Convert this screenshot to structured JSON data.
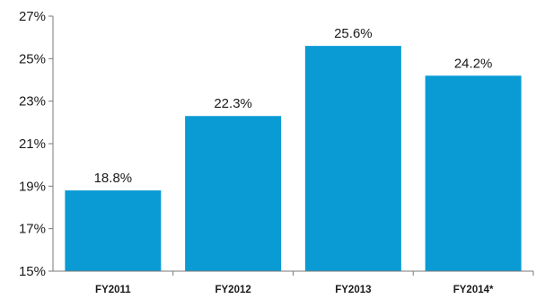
{
  "chart_data": {
    "type": "bar",
    "categories": [
      "FY2011",
      "FY2012",
      "FY2013",
      "FY2014*"
    ],
    "values": [
      18.8,
      22.3,
      25.6,
      24.2
    ],
    "data_labels": [
      "18.8%",
      "22.3%",
      "25.6%",
      "24.2%"
    ],
    "title": "",
    "xlabel": "",
    "ylabel": "",
    "ylim": [
      15,
      27
    ],
    "yticks": [
      15,
      17,
      19,
      21,
      23,
      25,
      27
    ],
    "ytick_labels": [
      "15%",
      "17%",
      "19%",
      "21%",
      "23%",
      "25%",
      "27%"
    ],
    "grid": false,
    "legend": "none",
    "colors": {
      "bar": "#0a9bd4",
      "axis": "#7a7a7a",
      "text": "#1a1a1a"
    }
  }
}
